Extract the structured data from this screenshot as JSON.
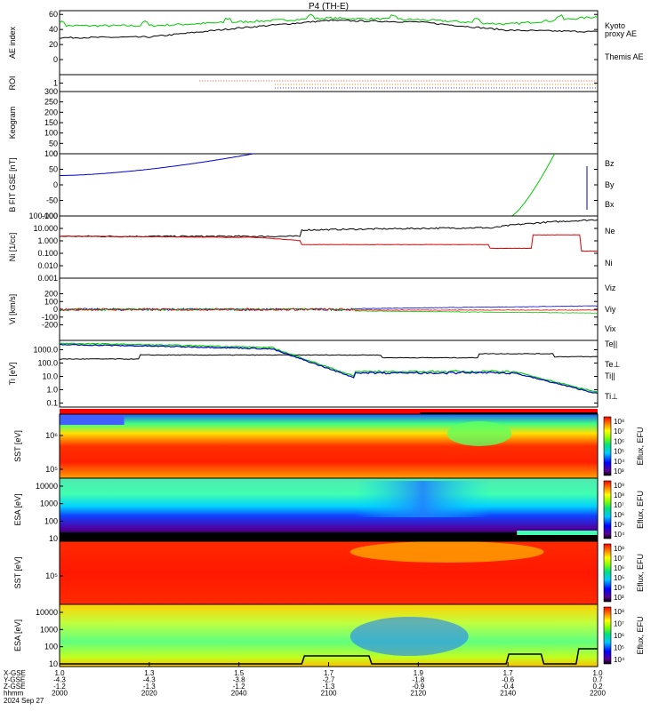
{
  "title": "P4 (TH-E)",
  "time_axis": {
    "tick_values": [
      "2000",
      "2020",
      "2040",
      "2100",
      "2120",
      "2140",
      "2200"
    ],
    "rows": [
      {
        "label": "X-GSE",
        "values": [
          "1.0",
          "1.3",
          "1.5",
          "1.7",
          "1.9",
          "1.7",
          "1.0"
        ]
      },
      {
        "label": "Y-GSE",
        "values": [
          "-4.3",
          "-4.3",
          "-3.8",
          "-2.7",
          "-1.8",
          "-0.6",
          "0.7"
        ]
      },
      {
        "label": "Z-GSE",
        "values": [
          "-1.2",
          "-1.3",
          "-1.2",
          "-1.3",
          "-0.9",
          "-0.4",
          "0.2"
        ]
      },
      {
        "label": "hhmm",
        "values": [
          "2000",
          "2020",
          "2040",
          "2100",
          "2120",
          "2140",
          "2200"
        ]
      }
    ],
    "date": "2024 Sep 27"
  },
  "colorbar": {
    "label": "Eflux, EFU"
  },
  "chart_data": [
    {
      "type": "line",
      "id": "ae",
      "ylabel": "AE index",
      "ylim": [
        -20,
        65
      ],
      "yticks": [
        "0",
        "20",
        "40",
        "60"
      ],
      "x": [
        0,
        20,
        40,
        60,
        80,
        100,
        120
      ],
      "series": [
        {
          "name": "Kyoto proxy AE",
          "color": "#00cc00",
          "values": [
            45,
            45,
            50,
            55,
            53,
            47,
            57
          ]
        },
        {
          "name": "Themis AE",
          "color": "#000000",
          "values": [
            29,
            30,
            42,
            52,
            50,
            39,
            37
          ]
        }
      ]
    },
    {
      "type": "scatter",
      "id": "roi",
      "ylabel": "ROI",
      "yticks": [
        "1"
      ]
    },
    {
      "type": "heatmap",
      "id": "keogram",
      "ylabel": "Keogram",
      "ylim": [
        0,
        300
      ],
      "yticks": [
        "0",
        "50",
        "100",
        "150",
        "200",
        "250",
        "300"
      ]
    },
    {
      "type": "line",
      "id": "bfield",
      "ylabel": "B FIT GSE [nT]",
      "ylim": [
        -100,
        100
      ],
      "yticks": [
        "-100",
        "-50",
        "0",
        "50",
        "100"
      ],
      "series": [
        {
          "name": "Bz",
          "color": "#dd0000"
        },
        {
          "name": "By",
          "color": "#00cc00"
        },
        {
          "name": "Bx",
          "color": "#0000cc"
        }
      ]
    },
    {
      "type": "line",
      "id": "density",
      "ylabel": "Ni [1/cc]",
      "ylim": [
        0.001,
        100
      ],
      "log": true,
      "yticks": [
        "0.001",
        "0.010",
        "0.100",
        "1.000",
        "10.000",
        "100.000"
      ],
      "series": [
        {
          "name": "Ne",
          "color": "#dd0000"
        },
        {
          "name": "Ni",
          "color": "#000000"
        }
      ]
    },
    {
      "type": "line",
      "id": "velocity",
      "ylabel": "Vi [km/s]",
      "ylim": [
        -400,
        400
      ],
      "yticks": [
        "-200",
        "-100",
        "0",
        "100",
        "200"
      ],
      "series": [
        {
          "name": "Viz",
          "color": "#dd0000"
        },
        {
          "name": "Viy",
          "color": "#00cc00"
        },
        {
          "name": "Vix",
          "color": "#0000cc"
        }
      ]
    },
    {
      "type": "line",
      "id": "temperature",
      "ylabel": "Ti [eV]",
      "ylim": [
        0.05,
        5000
      ],
      "log": true,
      "yticks": [
        "0.1",
        "1.0",
        "10.0",
        "100.0",
        "1000.0"
      ],
      "series": [
        {
          "name": "Te||",
          "color": "#000000"
        },
        {
          "name": "Te⊥",
          "color": "#dd0000"
        },
        {
          "name": "Ti||",
          "color": "#00cc00"
        },
        {
          "name": "Ti⊥",
          "color": "#0000cc"
        }
      ]
    },
    {
      "type": "heatmap",
      "id": "sst-e",
      "ylabel": "SST [eV]",
      "yticks": [
        "10⁶",
        "10⁵"
      ],
      "colorbar_ticks": [
        "10⁸",
        "10⁷",
        "10⁶",
        "10⁵",
        "10⁴",
        "10³"
      ]
    },
    {
      "type": "heatmap",
      "id": "esa-e",
      "ylabel": "ESA [eV]",
      "yticks": [
        "10",
        "100",
        "1000",
        "10000"
      ],
      "colorbar_ticks": [
        "10⁹",
        "10⁸",
        "10⁷",
        "10⁶",
        "10⁵",
        "10⁴"
      ]
    },
    {
      "type": "heatmap",
      "id": "sst-i",
      "ylabel": "SST [eV]",
      "yticks": [
        "10⁵"
      ],
      "colorbar_ticks": [
        "10⁸",
        "10⁷",
        "10⁶",
        "10⁵",
        "10⁴",
        "10³"
      ]
    },
    {
      "type": "heatmap",
      "id": "esa-i",
      "ylabel": "ESA [eV]",
      "yticks": [
        "10",
        "100",
        "1000",
        "10000"
      ],
      "colorbar_ticks": [
        "10⁸",
        "10⁷",
        "10⁶",
        "10⁵",
        "10⁴"
      ]
    }
  ]
}
